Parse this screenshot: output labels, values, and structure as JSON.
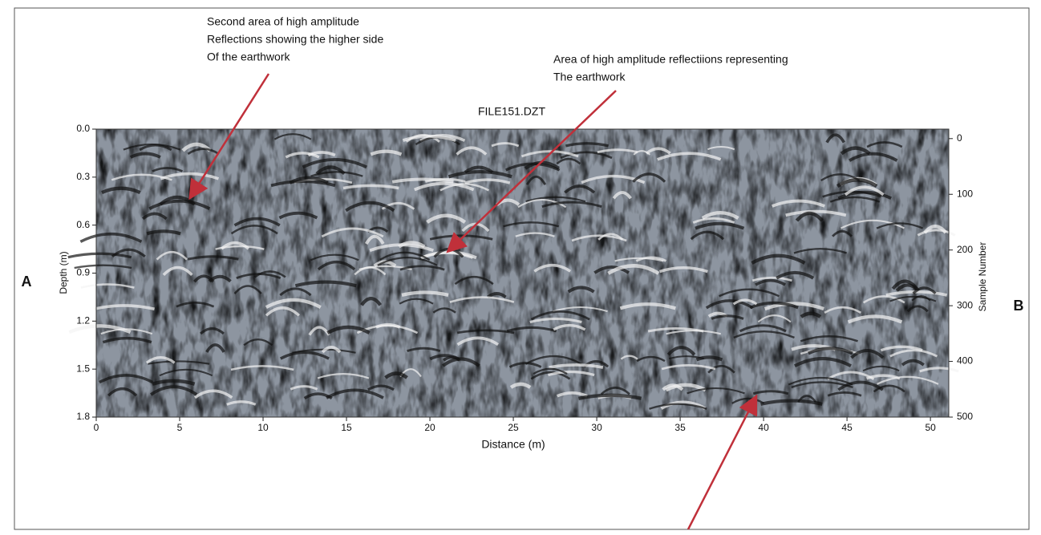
{
  "chart_data": {
    "type": "radargram",
    "title": "FILE151.DZT",
    "x_label": "Distance (m)",
    "y_label": "Depth (m)",
    "y2_label": "Sample Number",
    "xlim": [
      0,
      51.1
    ],
    "xticks": [
      0,
      5,
      10,
      15,
      20,
      25,
      30,
      35,
      40,
      45,
      50
    ],
    "ylim": [
      0,
      1.8
    ],
    "yticks": [
      {
        "value": 0,
        "label": "0.0"
      },
      0.3,
      0.6,
      0.9,
      1.2,
      1.5,
      1.8
    ],
    "y2lim": [
      -17,
      500
    ],
    "y2ticks": [
      0,
      100,
      200,
      300,
      400,
      500
    ],
    "side_labels": [
      "A",
      "B"
    ],
    "annotations": [
      {
        "lines": [
          "Second area of high amplitude",
          "Reflections showing the higher side",
          "Of the earthwork"
        ]
      },
      {
        "lines": [
          "Area of high amplitude reflectiions representing",
          "The earthwork"
        ]
      }
    ]
  }
}
